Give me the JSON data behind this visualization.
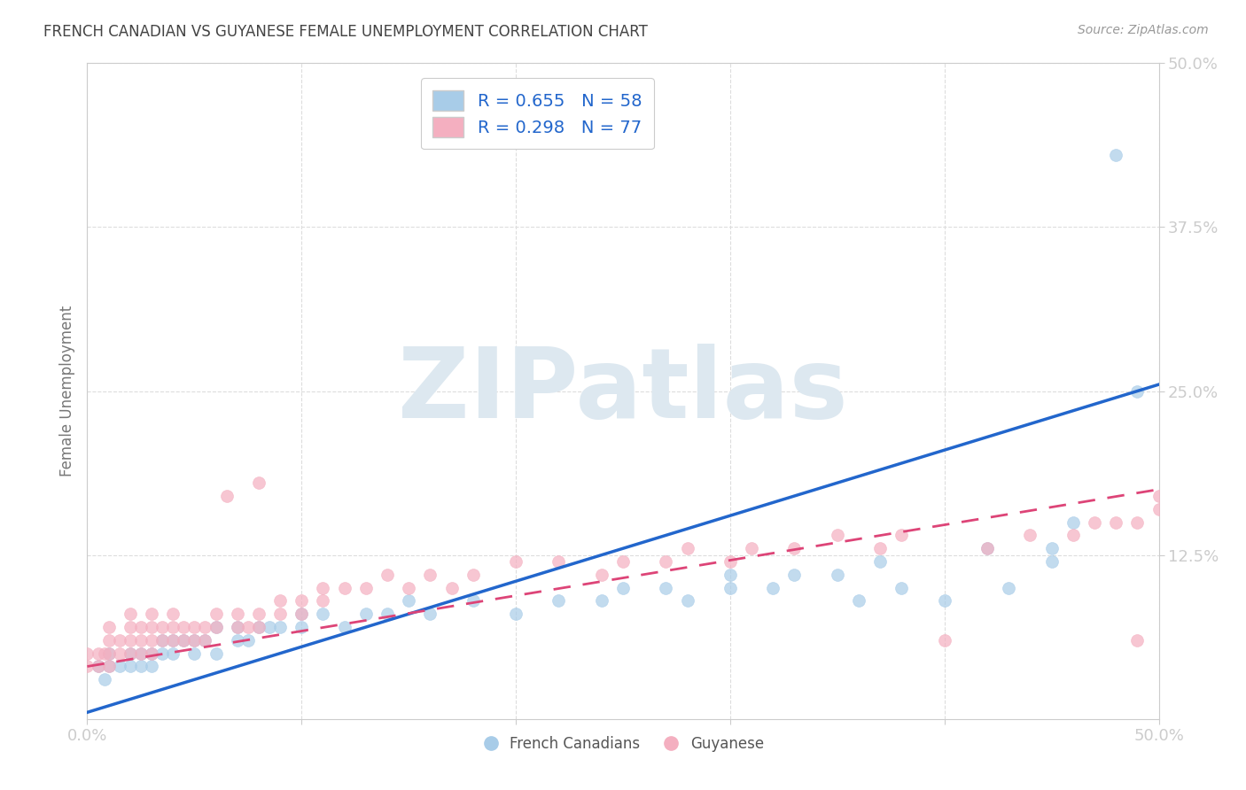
{
  "title": "FRENCH CANADIAN VS GUYANESE FEMALE UNEMPLOYMENT CORRELATION CHART",
  "source": "Source: ZipAtlas.com",
  "ylabel": "Female Unemployment",
  "xlim": [
    0.0,
    0.5
  ],
  "ylim": [
    0.0,
    0.5
  ],
  "blue_R": 0.655,
  "blue_N": 58,
  "pink_R": 0.298,
  "pink_N": 77,
  "blue_color": "#a8cce8",
  "pink_color": "#f4afc0",
  "blue_line_color": "#2266cc",
  "pink_line_color": "#dd4477",
  "legend_text_color": "#2266cc",
  "axis_label_color": "#2266cc",
  "title_color": "#333333",
  "grid_color": "#dddddd",
  "watermark_color": "#dde8f0",
  "blue_x": [
    0.005,
    0.008,
    0.01,
    0.01,
    0.015,
    0.02,
    0.02,
    0.025,
    0.025,
    0.03,
    0.03,
    0.035,
    0.035,
    0.04,
    0.04,
    0.045,
    0.05,
    0.05,
    0.055,
    0.06,
    0.06,
    0.07,
    0.07,
    0.075,
    0.08,
    0.085,
    0.09,
    0.1,
    0.1,
    0.11,
    0.12,
    0.13,
    0.14,
    0.15,
    0.16,
    0.18,
    0.2,
    0.22,
    0.24,
    0.25,
    0.27,
    0.28,
    0.3,
    0.3,
    0.32,
    0.33,
    0.35,
    0.36,
    0.37,
    0.38,
    0.4,
    0.42,
    0.43,
    0.45,
    0.45,
    0.46,
    0.48,
    0.49
  ],
  "blue_y": [
    0.04,
    0.03,
    0.04,
    0.05,
    0.04,
    0.04,
    0.05,
    0.04,
    0.05,
    0.04,
    0.05,
    0.05,
    0.06,
    0.05,
    0.06,
    0.06,
    0.05,
    0.06,
    0.06,
    0.05,
    0.07,
    0.06,
    0.07,
    0.06,
    0.07,
    0.07,
    0.07,
    0.07,
    0.08,
    0.08,
    0.07,
    0.08,
    0.08,
    0.09,
    0.08,
    0.09,
    0.08,
    0.09,
    0.09,
    0.1,
    0.1,
    0.09,
    0.1,
    0.11,
    0.1,
    0.11,
    0.11,
    0.09,
    0.12,
    0.1,
    0.09,
    0.13,
    0.1,
    0.12,
    0.13,
    0.15,
    0.43,
    0.25
  ],
  "pink_x": [
    0.0,
    0.0,
    0.005,
    0.005,
    0.008,
    0.01,
    0.01,
    0.01,
    0.01,
    0.015,
    0.015,
    0.02,
    0.02,
    0.02,
    0.02,
    0.025,
    0.025,
    0.025,
    0.03,
    0.03,
    0.03,
    0.03,
    0.035,
    0.035,
    0.04,
    0.04,
    0.04,
    0.045,
    0.045,
    0.05,
    0.05,
    0.055,
    0.055,
    0.06,
    0.06,
    0.065,
    0.07,
    0.07,
    0.075,
    0.08,
    0.08,
    0.08,
    0.09,
    0.09,
    0.1,
    0.1,
    0.11,
    0.11,
    0.12,
    0.13,
    0.14,
    0.15,
    0.16,
    0.17,
    0.18,
    0.2,
    0.22,
    0.24,
    0.25,
    0.27,
    0.28,
    0.3,
    0.31,
    0.33,
    0.35,
    0.37,
    0.38,
    0.4,
    0.42,
    0.44,
    0.46,
    0.47,
    0.48,
    0.49,
    0.49,
    0.5,
    0.5
  ],
  "pink_y": [
    0.04,
    0.05,
    0.04,
    0.05,
    0.05,
    0.04,
    0.05,
    0.06,
    0.07,
    0.05,
    0.06,
    0.05,
    0.06,
    0.07,
    0.08,
    0.05,
    0.06,
    0.07,
    0.05,
    0.06,
    0.07,
    0.08,
    0.06,
    0.07,
    0.06,
    0.07,
    0.08,
    0.06,
    0.07,
    0.06,
    0.07,
    0.06,
    0.07,
    0.07,
    0.08,
    0.17,
    0.07,
    0.08,
    0.07,
    0.07,
    0.08,
    0.18,
    0.08,
    0.09,
    0.08,
    0.09,
    0.09,
    0.1,
    0.1,
    0.1,
    0.11,
    0.1,
    0.11,
    0.1,
    0.11,
    0.12,
    0.12,
    0.11,
    0.12,
    0.12,
    0.13,
    0.12,
    0.13,
    0.13,
    0.14,
    0.13,
    0.14,
    0.06,
    0.13,
    0.14,
    0.14,
    0.15,
    0.15,
    0.06,
    0.15,
    0.16,
    0.17
  ]
}
